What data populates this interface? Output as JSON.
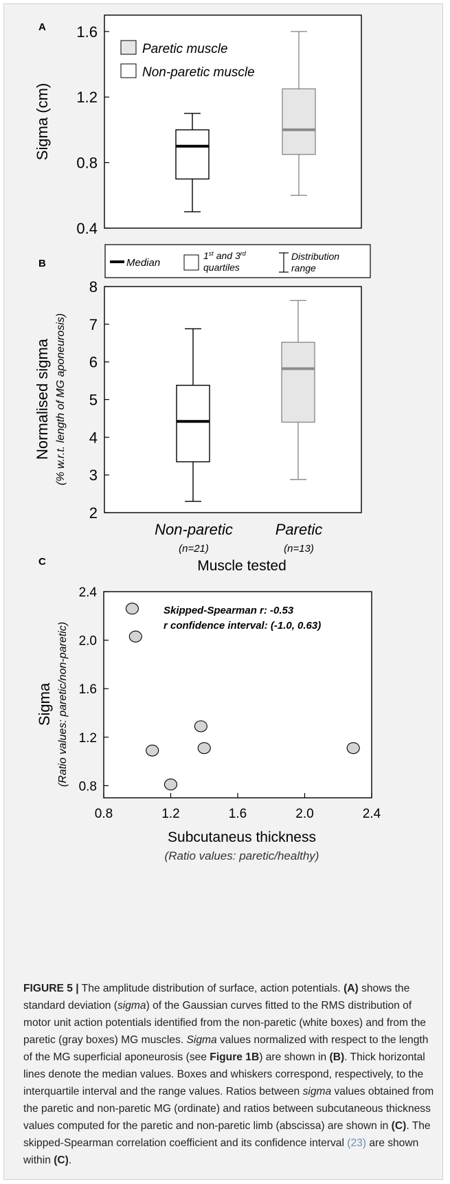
{
  "figure": {
    "panels": [
      "A",
      "B",
      "C"
    ],
    "panel_a": {
      "legend": [
        "Paretic muscle",
        "Non-paretic muscle"
      ]
    },
    "key": {
      "median": "Median",
      "quartiles_line1_pre": "1",
      "quartiles_line1_sup1": "st",
      "quartiles_line1_mid": " and 3",
      "quartiles_line1_sup2": "rd",
      "quartiles_line2": "quartiles",
      "range_line1": "Distribution",
      "range_line2": "range"
    },
    "panel_b": {
      "group_labels": [
        "Non-paretic",
        "Paretic"
      ],
      "group_counts": [
        "(n=21)",
        "(n=13)"
      ],
      "xlabel": "Muscle tested"
    },
    "panel_c": {
      "annotation_line1": "Skipped-Spearman r: -0.53",
      "annotation_line2": "r confidence interval: (-1.0, 0.63)"
    }
  },
  "caption": {
    "figure_label": "FIGURE 5 |",
    "seg1": " The amplitude distribution of surface, action potentials. ",
    "ref_a": "(A)",
    "seg2": " shows the standard deviation (",
    "sigma1": "sigma",
    "seg3": ") of the Gaussian curves fitted to the RMS distribution of motor unit action potentials identified from the non-paretic (white boxes) and from the paretic (gray boxes) MG muscles. ",
    "sigma2": "Sigma",
    "seg4": " values normalized with respect to the length of the MG superficial aponeurosis (see ",
    "fig_ref": "Figure 1B",
    "seg5": ") are shown in ",
    "ref_b": "(B)",
    "seg6": ". Thick horizontal lines denote the median values. Boxes and whiskers correspond, respectively, to the interquartile interval and the range values. Ratios between ",
    "sigma3": "sigma",
    "seg7": " values obtained from the paretic and non-paretic MG (ordinate) and ratios between subcutaneous thickness values computed for the paretic and non-paretic limb (abscissa) are shown in ",
    "ref_c1": "(C)",
    "seg8": ". The skipped-Spearman correlation coefficient and its confidence interval ",
    "citation": "(23)",
    "seg9": " are shown within ",
    "ref_c2": "(C)",
    "seg10": "."
  },
  "chart_data": [
    {
      "type": "box",
      "panel": "A",
      "ylabel": "Sigma (cm)",
      "ylim": [
        0.4,
        1.7
      ],
      "yticks": [
        "0.4",
        "0.8",
        "1.2",
        "1.6"
      ],
      "series": [
        {
          "name": "Non-paretic muscle",
          "color": "#ffffff",
          "median_color": "#000000",
          "min": 0.5,
          "q1": 0.7,
          "median": 0.9,
          "q3": 1.0,
          "max": 1.1
        },
        {
          "name": "Paretic muscle",
          "color": "#e6e6e6",
          "median_color": "#8c8c8c",
          "min": 0.6,
          "q1": 0.85,
          "median": 1.0,
          "q3": 1.25,
          "max": 1.6
        }
      ]
    },
    {
      "type": "box",
      "panel": "B",
      "ylabel": "Normalised sigma",
      "ylabel2": "(% w.r.t. length of MG aponeurosis)",
      "xlabel": "Muscle tested",
      "ylim": [
        2,
        8
      ],
      "yticks": [
        "2",
        "3",
        "4",
        "5",
        "6",
        "7",
        "8"
      ],
      "categories": [
        "Non-paretic",
        "Paretic"
      ],
      "series": [
        {
          "name": "Non-paretic",
          "color": "#ffffff",
          "median_color": "#000000",
          "min": 2.3,
          "q1": 3.35,
          "median": 4.42,
          "q3": 5.38,
          "max": 6.88
        },
        {
          "name": "Paretic",
          "color": "#e6e6e6",
          "median_color": "#8c8c8c",
          "min": 2.88,
          "q1": 4.4,
          "median": 5.82,
          "q3": 6.52,
          "max": 7.63
        }
      ]
    },
    {
      "type": "scatter",
      "panel": "C",
      "ylabel": "Sigma",
      "ylabel2": "(Ratio values: paretic/non-paretic)",
      "xlabel": "Subcutaneus thickness",
      "xlabel2": "(Ratio values: paretic/healthy)",
      "xlim": [
        0.8,
        2.4
      ],
      "ylim": [
        0.7,
        2.4
      ],
      "xticks": [
        "0.8",
        "1.2",
        "1.6",
        "2.0",
        "2.4"
      ],
      "yticks": [
        "0.8",
        "1.2",
        "1.6",
        "2.0",
        "2.4"
      ],
      "points": [
        {
          "x": 0.97,
          "y": 2.26
        },
        {
          "x": 0.99,
          "y": 2.03
        },
        {
          "x": 1.09,
          "y": 1.09
        },
        {
          "x": 1.2,
          "y": 0.81
        },
        {
          "x": 1.38,
          "y": 1.29
        },
        {
          "x": 1.4,
          "y": 1.11
        },
        {
          "x": 2.29,
          "y": 1.11
        }
      ]
    }
  ]
}
